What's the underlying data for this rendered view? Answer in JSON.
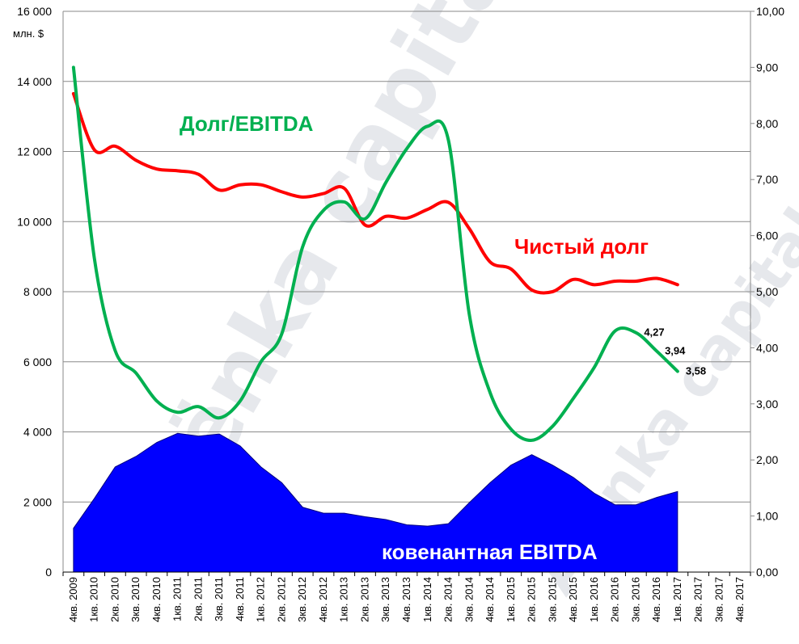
{
  "chart_data": {
    "type": "line",
    "categories": [
      "4кв. 2009",
      "1кв. 2010",
      "2кв. 2010",
      "3кв. 2010",
      "4кв. 2010",
      "1кв. 2011",
      "2кв. 2011",
      "3кв. 2011",
      "4кв. 2011",
      "1кв. 2012",
      "2кв. 2012",
      "3кв. 2012",
      "4кв. 2012",
      "1кв. 2013",
      "2кв. 2013",
      "3кв. 2013",
      "4кв. 2013",
      "1кв. 2014",
      "2кв. 2014",
      "3кв. 2014",
      "4кв. 2014",
      "1кв. 2015",
      "2кв. 2015",
      "3кв. 2015",
      "4кв. 2015",
      "1кв. 2016",
      "2кв. 2016",
      "3кв. 2016",
      "4кв. 2016",
      "1кв. 2017",
      "2кв. 2017",
      "3кв. 2017",
      "4кв. 2017"
    ],
    "y_unit_label": "млн. $",
    "ylim_left": [
      0,
      16000
    ],
    "yticks_left": [
      "0",
      "2 000",
      "4 000",
      "6 000",
      "8 000",
      "10 000",
      "12 000",
      "14 000",
      "16 000"
    ],
    "ylim_right": [
      0,
      10
    ],
    "yticks_right": [
      "0,00",
      "1,00",
      "2,00",
      "3,00",
      "4,00",
      "5,00",
      "6,00",
      "7,00",
      "8,00",
      "9,00",
      "10,00"
    ],
    "grid": true,
    "series": [
      {
        "name": "ковенантная EBITDA",
        "type": "area",
        "axis": "left",
        "color": "#0000ff",
        "values": [
          1250,
          2100,
          3000,
          3300,
          3700,
          3960,
          3880,
          3940,
          3600,
          3000,
          2550,
          1850,
          1680,
          1680,
          1580,
          1500,
          1350,
          1310,
          1380,
          1980,
          2550,
          3050,
          3350,
          3050,
          2700,
          2250,
          1920,
          1920,
          2130,
          2300,
          null,
          null,
          null
        ]
      },
      {
        "name": "Чистый долг",
        "type": "line",
        "axis": "left",
        "color": "#ff0000",
        "values": [
          13650,
          12050,
          12150,
          11750,
          11500,
          11450,
          11350,
          10900,
          11050,
          11050,
          10850,
          10700,
          10800,
          10950,
          9900,
          10150,
          10100,
          10350,
          10550,
          9800,
          8850,
          8650,
          8050,
          8000,
          8350,
          8200,
          8300,
          8300,
          8380,
          8200,
          null,
          null,
          null
        ]
      },
      {
        "name": "Долг/EBITDA",
        "type": "line",
        "axis": "right",
        "color": "#00b050",
        "values": [
          9.0,
          5.6,
          3.95,
          3.55,
          3.05,
          2.85,
          2.95,
          2.75,
          3.05,
          3.75,
          4.25,
          5.8,
          6.45,
          6.6,
          6.3,
          6.95,
          7.55,
          7.95,
          7.7,
          4.6,
          3.2,
          2.55,
          2.35,
          2.6,
          3.1,
          3.65,
          4.3,
          4.27,
          3.94,
          3.58,
          null,
          null,
          null
        ]
      }
    ],
    "data_labels": [
      {
        "series": "Долг/EBITDA",
        "category": "3кв. 2016",
        "text": "4,27"
      },
      {
        "series": "Долг/EBITDA",
        "category": "4кв. 2016",
        "text": "3,94"
      },
      {
        "series": "Долг/EBITDA",
        "category": "1кв. 2017",
        "text": "3,58"
      }
    ],
    "annotations": {
      "ratio": "Долг/EBITDA",
      "net_debt": "Чистый долг",
      "ebitda": "ковенантная EBITDA"
    },
    "watermark": "Alёnka capital"
  }
}
